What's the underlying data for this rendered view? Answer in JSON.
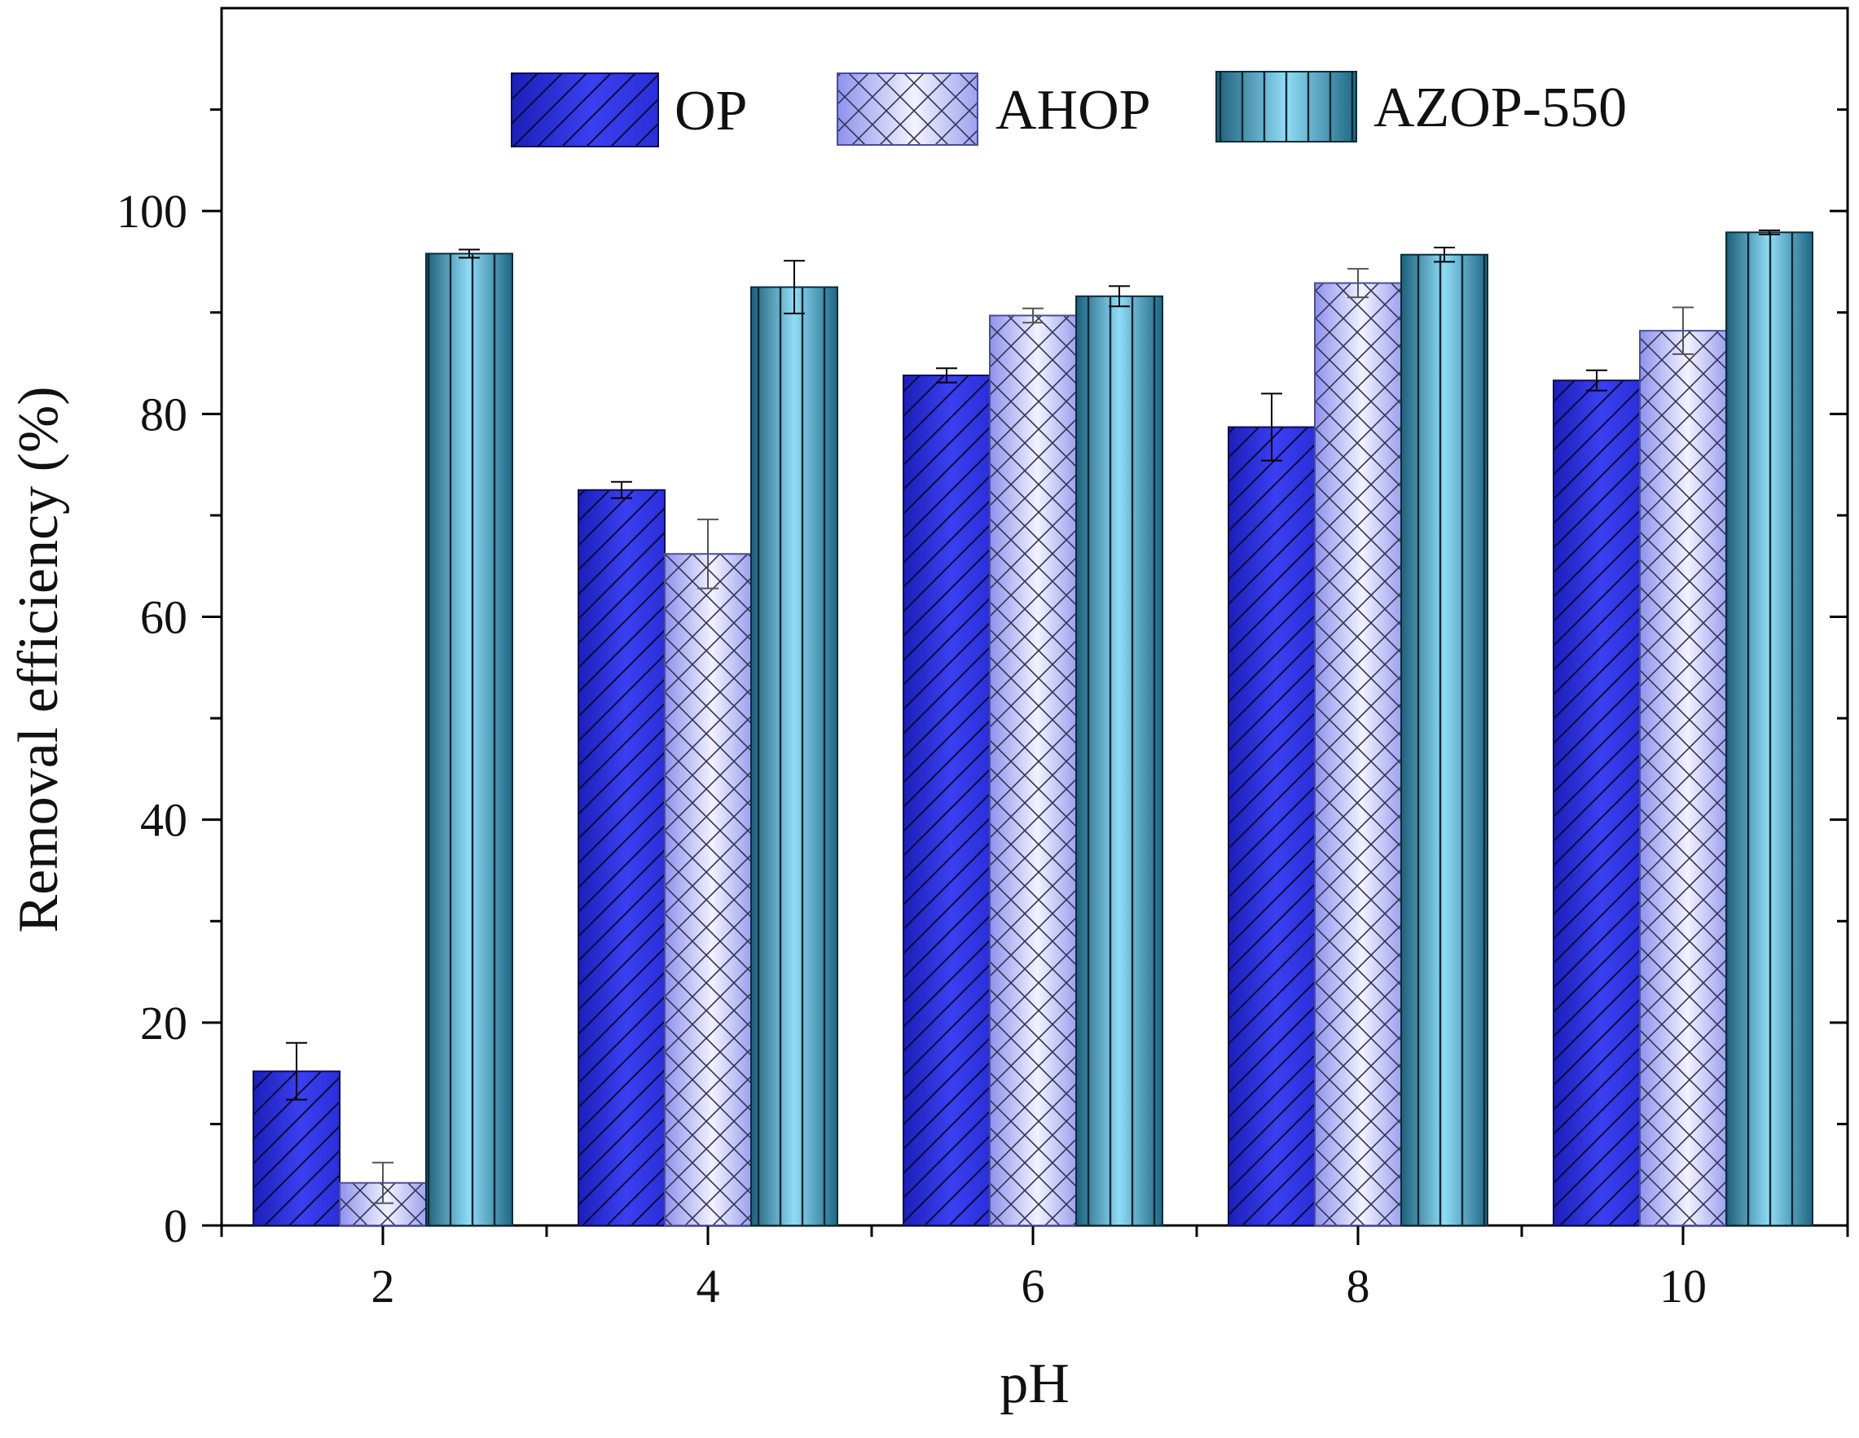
{
  "chart_data": {
    "type": "bar",
    "title": "",
    "xlabel": "pH",
    "ylabel": "Removal efficiency (%)",
    "categories": [
      "2",
      "4",
      "6",
      "8",
      "10"
    ],
    "series": [
      {
        "name": "OP",
        "values": [
          15.2,
          72.5,
          83.8,
          78.7,
          83.3
        ],
        "errors": [
          2.8,
          0.8,
          0.7,
          3.3,
          1.0
        ],
        "color": "#2f34e0",
        "pattern": "diagonal"
      },
      {
        "name": "AHOP",
        "values": [
          4.2,
          66.2,
          89.7,
          92.9,
          88.2
        ],
        "errors": [
          2.0,
          3.4,
          0.7,
          1.4,
          2.3
        ],
        "color": "#a9adef",
        "pattern": "crosshatch"
      },
      {
        "name": "AZOP-550",
        "values": [
          95.8,
          92.5,
          91.6,
          95.7,
          97.9
        ],
        "errors": [
          0.4,
          2.6,
          1.0,
          0.7,
          0.2
        ],
        "color": "#4fb3d8",
        "pattern": "vertical"
      }
    ],
    "ylim": [
      0,
      120
    ],
    "yticks": [
      0,
      20,
      40,
      60,
      80,
      100
    ],
    "yticks_minor": [
      10,
      30,
      50,
      70,
      90,
      110
    ],
    "legend_position": "top-center",
    "grid": false
  }
}
